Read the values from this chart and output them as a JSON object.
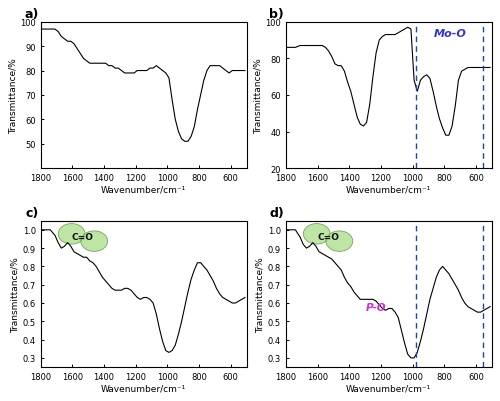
{
  "fig_width": 5.0,
  "fig_height": 4.02,
  "dpi": 100,
  "background": "#ffffff",
  "xlabel": "Wavenumber/cm⁻¹",
  "ylabel": "Transmittance/%",
  "xmin": 500,
  "xmax": 1800,
  "panel_a": {
    "ymin": 40,
    "ymax": 100,
    "yticks": [
      50,
      60,
      70,
      80,
      90,
      100
    ],
    "data_x": [
      1800,
      1770,
      1740,
      1710,
      1690,
      1670,
      1650,
      1630,
      1610,
      1590,
      1570,
      1550,
      1530,
      1510,
      1490,
      1470,
      1450,
      1430,
      1410,
      1390,
      1370,
      1350,
      1330,
      1310,
      1290,
      1270,
      1250,
      1230,
      1210,
      1190,
      1170,
      1150,
      1130,
      1110,
      1090,
      1070,
      1050,
      1030,
      1010,
      990,
      970,
      950,
      930,
      910,
      890,
      870,
      850,
      830,
      810,
      790,
      770,
      750,
      730,
      710,
      690,
      670,
      650,
      630,
      610,
      590,
      570,
      550,
      530,
      510
    ],
    "data_y": [
      97,
      97,
      97,
      97,
      96,
      94,
      93,
      92,
      92,
      91,
      89,
      87,
      85,
      84,
      83,
      83,
      83,
      83,
      83,
      83,
      82,
      82,
      81,
      81,
      80,
      79,
      79,
      79,
      79,
      80,
      80,
      80,
      80,
      81,
      81,
      82,
      81,
      80,
      79,
      77,
      68,
      60,
      55,
      52,
      51,
      51,
      53,
      57,
      64,
      70,
      76,
      80,
      82,
      82,
      82,
      82,
      81,
      80,
      79,
      80,
      80,
      80,
      80,
      80
    ]
  },
  "panel_b": {
    "ymin": 20,
    "ymax": 100,
    "yticks": [
      20,
      40,
      60,
      80,
      100
    ],
    "dashed_line_x": 980,
    "dashed_line_x2": 555,
    "annotation": "Mo-O",
    "annotation_color": "#3333cc",
    "data_x": [
      1800,
      1770,
      1740,
      1710,
      1690,
      1670,
      1650,
      1630,
      1610,
      1590,
      1570,
      1550,
      1530,
      1510,
      1490,
      1470,
      1450,
      1430,
      1410,
      1390,
      1370,
      1350,
      1330,
      1310,
      1290,
      1270,
      1250,
      1230,
      1210,
      1190,
      1170,
      1150,
      1130,
      1110,
      1090,
      1070,
      1050,
      1030,
      1010,
      990,
      970,
      950,
      930,
      910,
      890,
      870,
      850,
      830,
      810,
      790,
      770,
      750,
      730,
      710,
      690,
      670,
      650,
      630,
      610,
      590,
      570,
      550,
      530,
      510
    ],
    "data_y": [
      86,
      86,
      86,
      87,
      87,
      87,
      87,
      87,
      87,
      87,
      87,
      86,
      84,
      81,
      77,
      76,
      76,
      73,
      67,
      62,
      55,
      48,
      44,
      43,
      45,
      55,
      70,
      83,
      90,
      92,
      93,
      93,
      93,
      93,
      94,
      95,
      96,
      97,
      96,
      68,
      62,
      68,
      70,
      71,
      69,
      62,
      54,
      47,
      42,
      38,
      38,
      43,
      54,
      68,
      73,
      74,
      75,
      75,
      75,
      75,
      75,
      75,
      75,
      75
    ]
  },
  "panel_c": {
    "ymin": 0.25,
    "ymax": 1.05,
    "yticks": [
      0.3,
      0.4,
      0.5,
      0.6,
      0.7,
      0.8,
      0.9,
      1.0
    ],
    "data_x": [
      1800,
      1770,
      1740,
      1710,
      1690,
      1670,
      1650,
      1630,
      1610,
      1590,
      1570,
      1550,
      1530,
      1510,
      1490,
      1470,
      1450,
      1430,
      1410,
      1390,
      1370,
      1350,
      1330,
      1310,
      1290,
      1270,
      1250,
      1230,
      1210,
      1190,
      1170,
      1150,
      1130,
      1110,
      1090,
      1070,
      1050,
      1030,
      1010,
      990,
      970,
      950,
      930,
      910,
      890,
      870,
      850,
      830,
      810,
      790,
      770,
      750,
      730,
      710,
      690,
      670,
      650,
      630,
      610,
      590,
      570,
      550,
      530,
      510
    ],
    "data_y": [
      1.0,
      1.0,
      1.0,
      0.97,
      0.93,
      0.9,
      0.91,
      0.93,
      0.91,
      0.88,
      0.87,
      0.86,
      0.85,
      0.85,
      0.83,
      0.82,
      0.8,
      0.77,
      0.74,
      0.72,
      0.7,
      0.68,
      0.67,
      0.67,
      0.67,
      0.68,
      0.68,
      0.67,
      0.65,
      0.63,
      0.62,
      0.63,
      0.63,
      0.62,
      0.6,
      0.54,
      0.46,
      0.39,
      0.34,
      0.33,
      0.34,
      0.37,
      0.43,
      0.5,
      0.58,
      0.66,
      0.73,
      0.78,
      0.82,
      0.82,
      0.8,
      0.78,
      0.75,
      0.72,
      0.68,
      0.65,
      0.63,
      0.62,
      0.61,
      0.6,
      0.6,
      0.61,
      0.62,
      0.63
    ]
  },
  "panel_d": {
    "ymin": 0.25,
    "ymax": 1.05,
    "yticks": [
      0.3,
      0.4,
      0.5,
      0.6,
      0.7,
      0.8,
      0.9,
      1.0
    ],
    "dashed_line_x": 980,
    "dashed_line_x2": 555,
    "annotation_po": "P-O",
    "annotation_po_color": "#cc33cc",
    "data_x": [
      1800,
      1770,
      1740,
      1710,
      1690,
      1670,
      1650,
      1630,
      1610,
      1590,
      1570,
      1550,
      1530,
      1510,
      1490,
      1470,
      1450,
      1430,
      1410,
      1390,
      1370,
      1350,
      1330,
      1310,
      1290,
      1270,
      1250,
      1230,
      1210,
      1190,
      1170,
      1150,
      1130,
      1110,
      1090,
      1070,
      1050,
      1030,
      1010,
      990,
      970,
      950,
      930,
      910,
      890,
      870,
      850,
      830,
      810,
      790,
      770,
      750,
      730,
      710,
      690,
      670,
      650,
      630,
      610,
      590,
      570,
      550,
      530,
      510
    ],
    "data_y": [
      1.0,
      1.0,
      1.0,
      0.96,
      0.92,
      0.9,
      0.91,
      0.93,
      0.91,
      0.88,
      0.87,
      0.86,
      0.85,
      0.84,
      0.82,
      0.8,
      0.78,
      0.74,
      0.71,
      0.69,
      0.66,
      0.64,
      0.62,
      0.62,
      0.62,
      0.62,
      0.62,
      0.61,
      0.59,
      0.57,
      0.56,
      0.57,
      0.57,
      0.55,
      0.52,
      0.45,
      0.38,
      0.32,
      0.3,
      0.3,
      0.33,
      0.39,
      0.46,
      0.54,
      0.62,
      0.68,
      0.74,
      0.78,
      0.8,
      0.78,
      0.76,
      0.73,
      0.7,
      0.67,
      0.63,
      0.6,
      0.58,
      0.57,
      0.56,
      0.55,
      0.55,
      0.56,
      0.57,
      0.58
    ]
  }
}
